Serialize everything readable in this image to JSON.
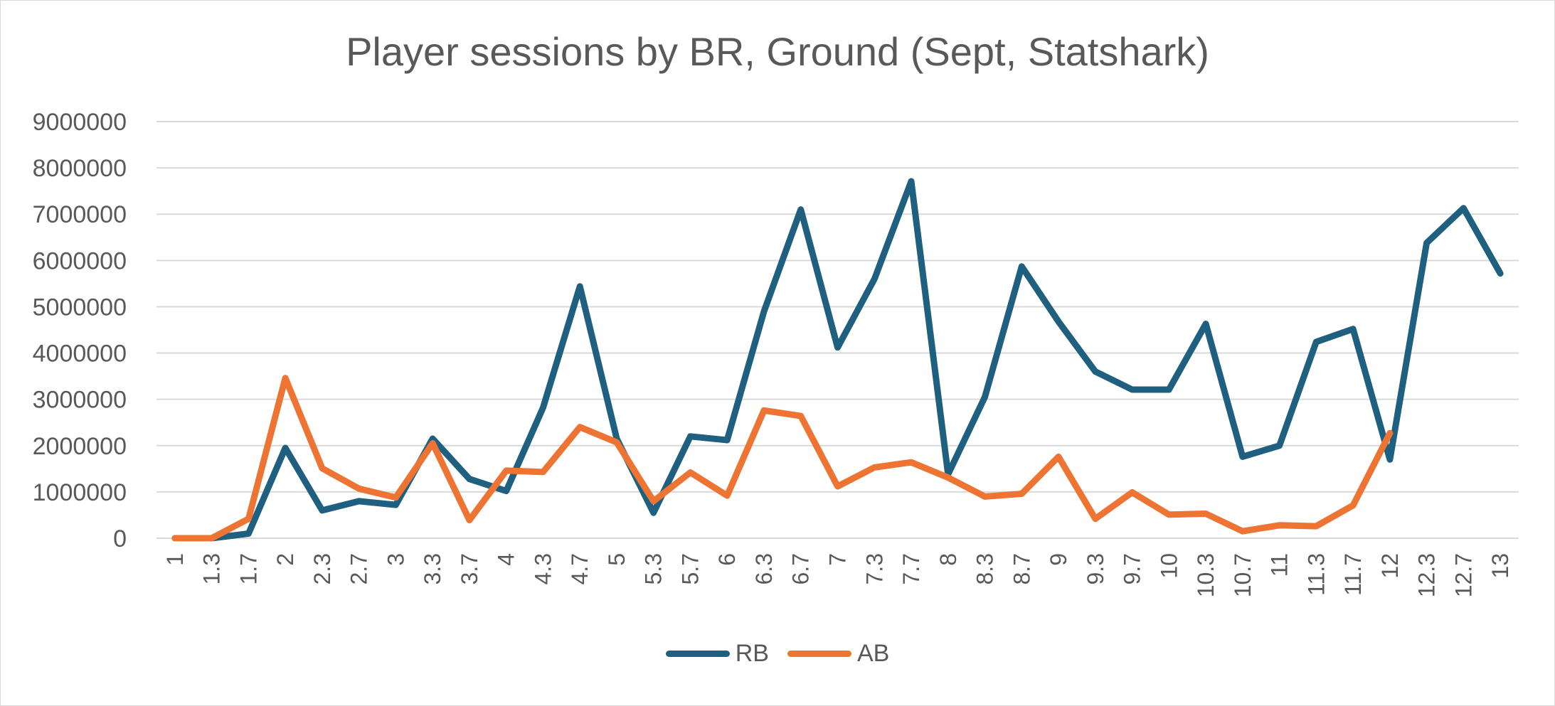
{
  "chart_data": {
    "type": "line",
    "title": "Player sessions by BR, Ground (Sept, Statshark)",
    "xlabel": "",
    "ylabel": "",
    "ylim": [
      0,
      9000000
    ],
    "yticks": [
      "0",
      "1000000",
      "2000000",
      "3000000",
      "4000000",
      "5000000",
      "6000000",
      "7000000",
      "8000000",
      "9000000"
    ],
    "categories": [
      "1",
      "1.3",
      "1.7",
      "2",
      "2.3",
      "2.7",
      "3",
      "3.3",
      "3.7",
      "4",
      "4.3",
      "4.7",
      "5",
      "5.3",
      "5.7",
      "6",
      "6.3",
      "6.7",
      "7",
      "7.3",
      "7.7",
      "8",
      "8.3",
      "8.7",
      "9",
      "9.3",
      "9.7",
      "10",
      "10.3",
      "10.7",
      "11",
      "11.3",
      "11.7",
      "12",
      "12.3",
      "12.7",
      "13"
    ],
    "grid": true,
    "legend_position": "bottom",
    "series": [
      {
        "name": "RB",
        "color": "#1f5f7f",
        "values": [
          0,
          0,
          100000,
          1950000,
          600000,
          800000,
          720000,
          2150000,
          1280000,
          1020000,
          2820000,
          5440000,
          2150000,
          550000,
          2200000,
          2120000,
          4900000,
          7100000,
          4120000,
          5600000,
          7710000,
          1380000,
          3050000,
          5870000,
          4680000,
          3600000,
          3210000,
          3210000,
          4630000,
          1760000,
          2000000,
          4240000,
          4520000,
          1700000,
          6380000,
          7130000,
          5720000
        ]
      },
      {
        "name": "AB",
        "color": "#ed7432",
        "values": [
          0,
          0,
          420000,
          3460000,
          1510000,
          1070000,
          880000,
          2050000,
          390000,
          1460000,
          1430000,
          2400000,
          2070000,
          800000,
          1420000,
          920000,
          2760000,
          2640000,
          1120000,
          1530000,
          1640000,
          1310000,
          900000,
          960000,
          1760000,
          420000,
          990000,
          510000,
          530000,
          150000,
          280000,
          260000,
          710000,
          2270000,
          null,
          null,
          null
        ]
      }
    ]
  }
}
